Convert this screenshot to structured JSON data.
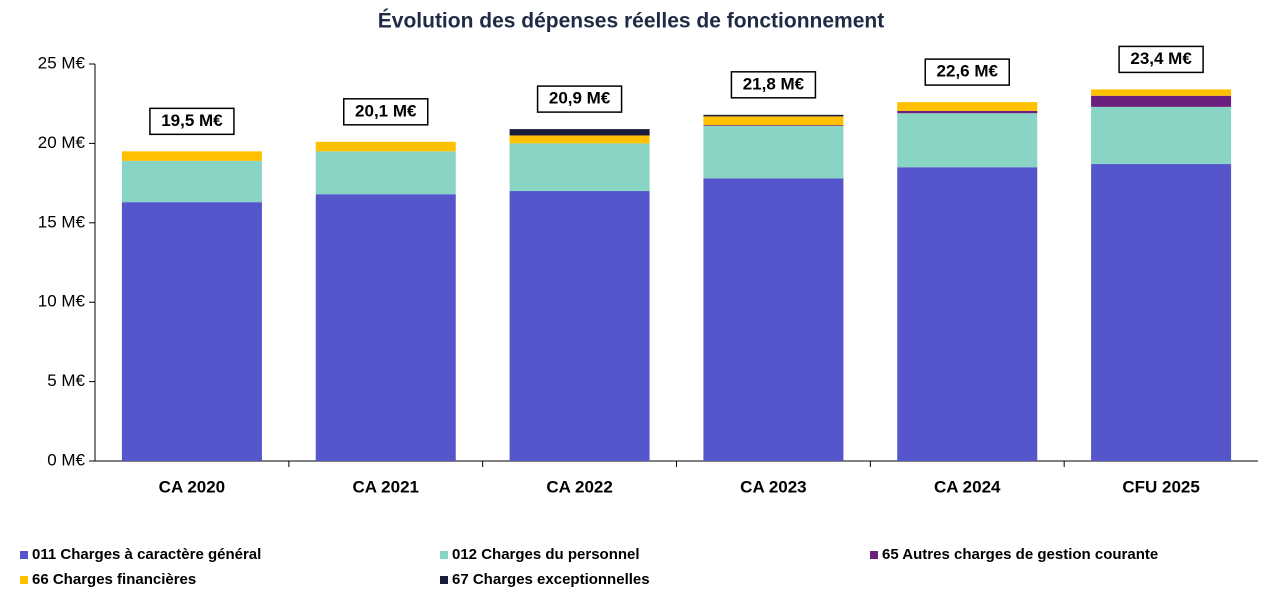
{
  "chart_data": {
    "type": "stacked_bar",
    "title": "Évolution des dépenses réelles de fonctionnement",
    "categories": [
      "CA 2020",
      "CA 2021",
      "CA 2022",
      "CA 2023",
      "CA 2024",
      "CFU 2025"
    ],
    "series": [
      {
        "name": "011 Charges à caractère général",
        "color": "#5555cc",
        "values": [
          16.3,
          16.8,
          17.0,
          17.8,
          18.5,
          18.7
        ]
      },
      {
        "name": "012 Charges du personnel",
        "color": "#88d5c5",
        "values": [
          2.6,
          2.7,
          3.0,
          3.3,
          3.4,
          3.6
        ]
      },
      {
        "name": "65 Autres charges de gestion courante",
        "color": "#6b1f7f",
        "values": [
          0,
          0,
          0,
          0.05,
          0.15,
          0.7
        ]
      },
      {
        "name": "66 Charges financières",
        "color": "#ffc000",
        "values": [
          0.6,
          0.6,
          0.5,
          0.55,
          0.55,
          0.4
        ]
      },
      {
        "name": "67 Charges exceptionnelles",
        "color": "#1a1a3a",
        "values": [
          0,
          0,
          0.4,
          0.1,
          0,
          0
        ]
      }
    ],
    "totals": {
      "values": [
        19.5,
        20.1,
        20.9,
        21.8,
        22.6,
        23.4
      ],
      "value_labels": [
        "19,5 M€",
        "20,1 M€",
        "20,9 M€",
        "21,8 M€",
        "22,6 M€",
        "23,4 M€"
      ]
    },
    "ylim": [
      0,
      25
    ],
    "yticks": [
      {
        "value": 0,
        "label": "0 M€"
      },
      {
        "value": 5,
        "label": "5 M€"
      },
      {
        "value": 10,
        "label": "10 M€"
      },
      {
        "value": 15,
        "label": "15 M€"
      },
      {
        "value": 20,
        "label": "20 M€"
      },
      {
        "value": 25,
        "label": "25 M€"
      }
    ],
    "legend": "bottom"
  }
}
